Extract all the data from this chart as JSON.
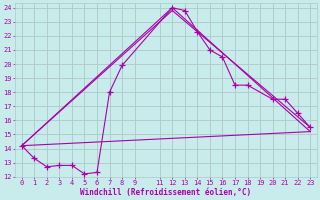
{
  "xlabel": "Windchill (Refroidissement éolien,°C)",
  "background_color": "#c8ecec",
  "grid_color": "#b0c8c8",
  "line_color": "#aa00aa",
  "xlim": [
    -0.5,
    23.5
  ],
  "ylim": [
    12,
    24.3
  ],
  "xticks": [
    0,
    1,
    2,
    3,
    4,
    5,
    6,
    7,
    8,
    9,
    11,
    12,
    13,
    14,
    15,
    16,
    17,
    18,
    19,
    20,
    21,
    22,
    23
  ],
  "yticks": [
    12,
    13,
    14,
    15,
    16,
    17,
    18,
    19,
    20,
    21,
    22,
    23,
    24
  ],
  "series_main": {
    "x": [
      0,
      1,
      2,
      3,
      4,
      5,
      6,
      7,
      8,
      12,
      13,
      14,
      15,
      16,
      17,
      18,
      20,
      21,
      22,
      23
    ],
    "y": [
      14.2,
      13.3,
      12.7,
      12.8,
      12.8,
      12.2,
      12.3,
      18.0,
      19.9,
      24.0,
      23.8,
      22.3,
      21.0,
      20.5,
      18.5,
      18.5,
      17.5,
      17.5,
      16.5,
      15.5
    ]
  },
  "series_lines": [
    {
      "x": [
        0,
        12,
        23
      ],
      "y": [
        14.2,
        24.0,
        15.2
      ]
    },
    {
      "x": [
        0,
        12,
        23
      ],
      "y": [
        14.2,
        23.8,
        15.5
      ]
    },
    {
      "x": [
        0,
        23
      ],
      "y": [
        14.2,
        15.2
      ]
    }
  ],
  "figsize": [
    3.2,
    2.0
  ],
  "dpi": 100
}
